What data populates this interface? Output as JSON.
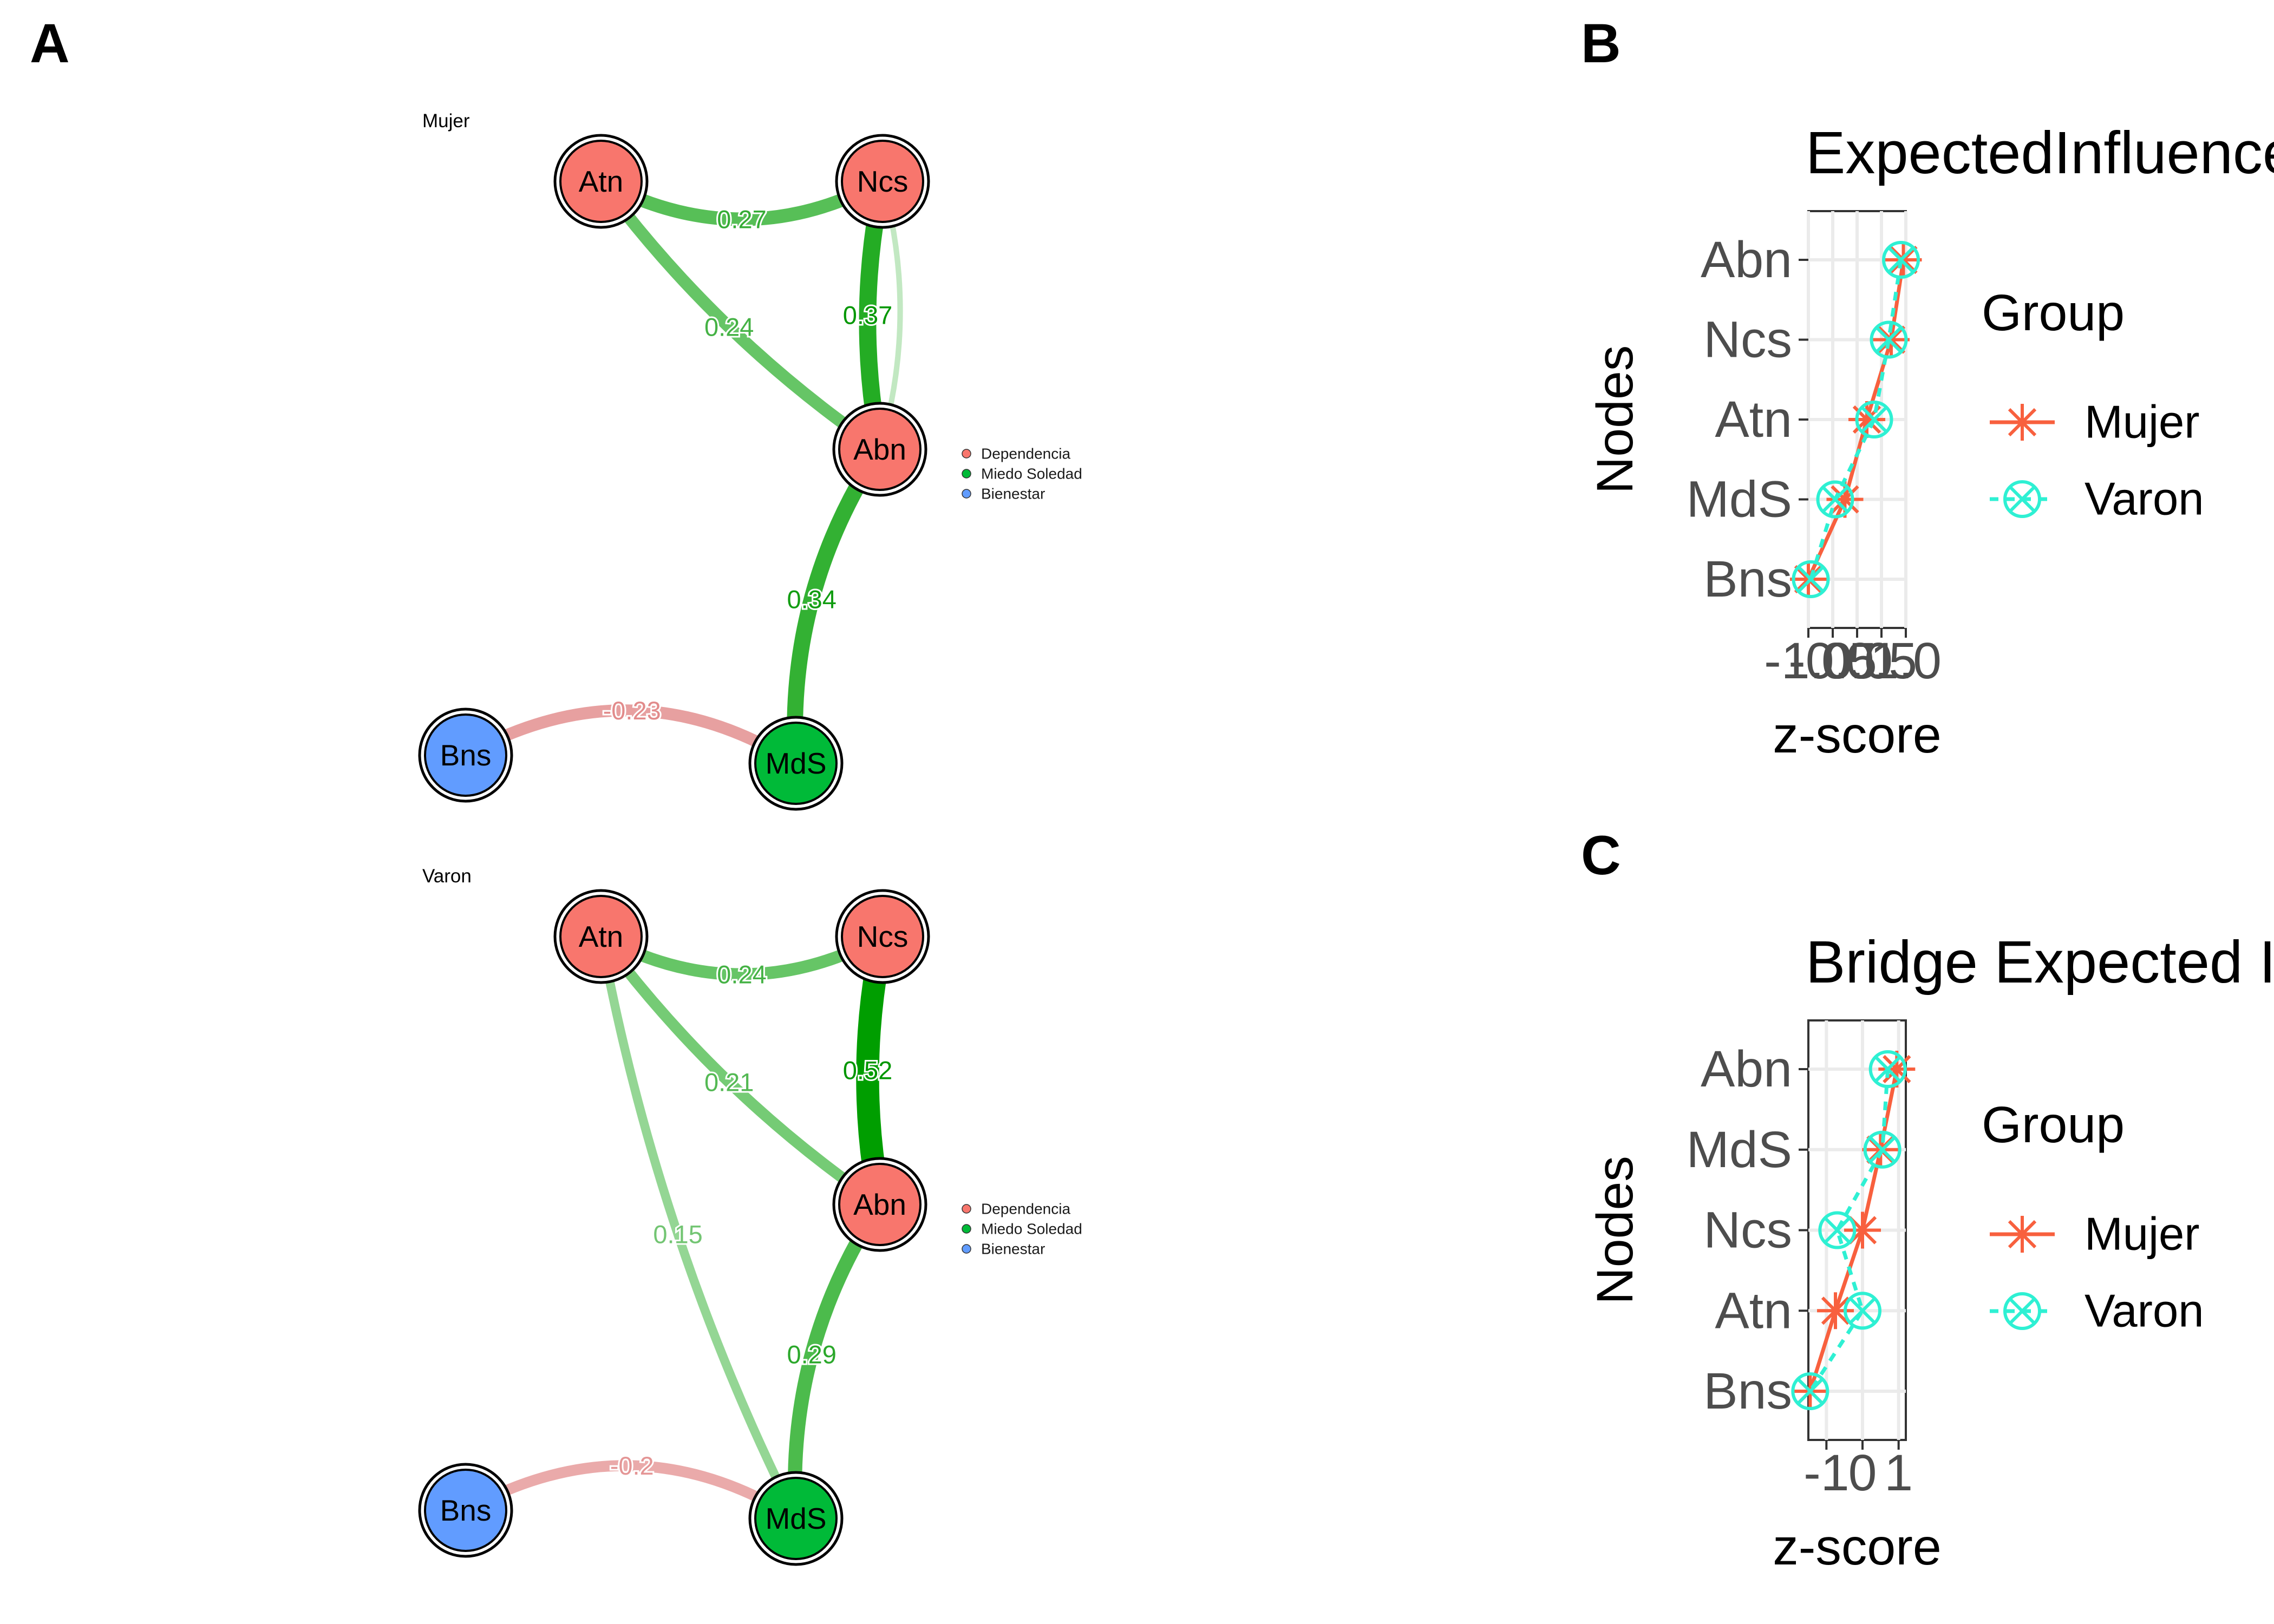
{
  "panels": {
    "A": "A",
    "B": "B",
    "C": "C"
  },
  "network_legend": [
    {
      "label": "Dependencia",
      "color": "#F8766D"
    },
    {
      "label": "Miedo Soledad",
      "color": "#00BA38"
    },
    {
      "label": "Bienestar",
      "color": "#619CFF"
    }
  ],
  "chart_data": [
    {
      "type": "network",
      "title": "Mujer",
      "nodes": [
        {
          "id": "Atn",
          "group": "Dependencia"
        },
        {
          "id": "Ncs",
          "group": "Dependencia"
        },
        {
          "id": "Abn",
          "group": "Dependencia"
        },
        {
          "id": "MdS",
          "group": "Miedo Soledad"
        },
        {
          "id": "Bns",
          "group": "Bienestar"
        }
      ],
      "edges": [
        {
          "from": "Atn",
          "to": "Ncs",
          "weight": 0.27,
          "label": "0.27"
        },
        {
          "from": "Atn",
          "to": "Abn",
          "weight": 0.24,
          "label": "0.24"
        },
        {
          "from": "Ncs",
          "to": "Abn",
          "weight": 0.37,
          "label": "0.37"
        },
        {
          "from": "Ncs",
          "to": "Abn",
          "weight": 0.06,
          "label": ""
        },
        {
          "from": "Abn",
          "to": "MdS",
          "weight": 0.34,
          "label": "0.34"
        },
        {
          "from": "Bns",
          "to": "MdS",
          "weight": -0.23,
          "label": "-0.23"
        }
      ]
    },
    {
      "type": "network",
      "title": "Varon",
      "nodes": [
        {
          "id": "Atn",
          "group": "Dependencia"
        },
        {
          "id": "Ncs",
          "group": "Dependencia"
        },
        {
          "id": "Abn",
          "group": "Dependencia"
        },
        {
          "id": "MdS",
          "group": "Miedo Soledad"
        },
        {
          "id": "Bns",
          "group": "Bienestar"
        }
      ],
      "edges": [
        {
          "from": "Atn",
          "to": "Ncs",
          "weight": 0.24,
          "label": "0.24"
        },
        {
          "from": "Atn",
          "to": "Abn",
          "weight": 0.21,
          "label": "0.21"
        },
        {
          "from": "Atn",
          "to": "MdS",
          "weight": 0.15,
          "label": "0.15"
        },
        {
          "from": "Ncs",
          "to": "Abn",
          "weight": 0.52,
          "label": "0.52"
        },
        {
          "from": "Abn",
          "to": "MdS",
          "weight": 0.29,
          "label": "0.29"
        },
        {
          "from": "Bns",
          "to": "MdS",
          "weight": -0.2,
          "label": "-0.2"
        }
      ]
    },
    {
      "type": "line",
      "title": "ExpectedInfluence",
      "xlabel": "z-score",
      "ylabel": "Nodes",
      "categories": [
        "Abn",
        "Ncs",
        "Atn",
        "MdS",
        "Bns"
      ],
      "x_ticks": [
        "-1.0",
        "-0.5",
        "0.0",
        "0.5",
        "1.0"
      ],
      "xlim": [
        -1.0,
        1.0
      ],
      "legend_title": "Group",
      "series": [
        {
          "name": "Mujer",
          "color": "#F8603E",
          "values": [
            0.95,
            0.7,
            0.2,
            -0.25,
            -1.0
          ]
        },
        {
          "name": "Varon",
          "color": "#2EF0D3",
          "values": [
            0.9,
            0.65,
            0.35,
            -0.45,
            -0.95
          ]
        }
      ]
    },
    {
      "type": "line",
      "title": "Bridge Expected I",
      "xlabel": "z-score",
      "ylabel": "Nodes",
      "categories": [
        "Abn",
        "MdS",
        "Ncs",
        "Atn",
        "Bns"
      ],
      "x_ticks": [
        "-1",
        "0",
        "1"
      ],
      "xlim": [
        -1.5,
        1.2
      ],
      "legend_title": "Group",
      "series": [
        {
          "name": "Mujer",
          "color": "#F8603E",
          "values": [
            0.95,
            0.5,
            0.0,
            -0.75,
            -1.45
          ]
        },
        {
          "name": "Varon",
          "color": "#2EF0D3",
          "values": [
            0.7,
            0.55,
            -0.7,
            0.0,
            -1.45
          ]
        }
      ]
    }
  ]
}
